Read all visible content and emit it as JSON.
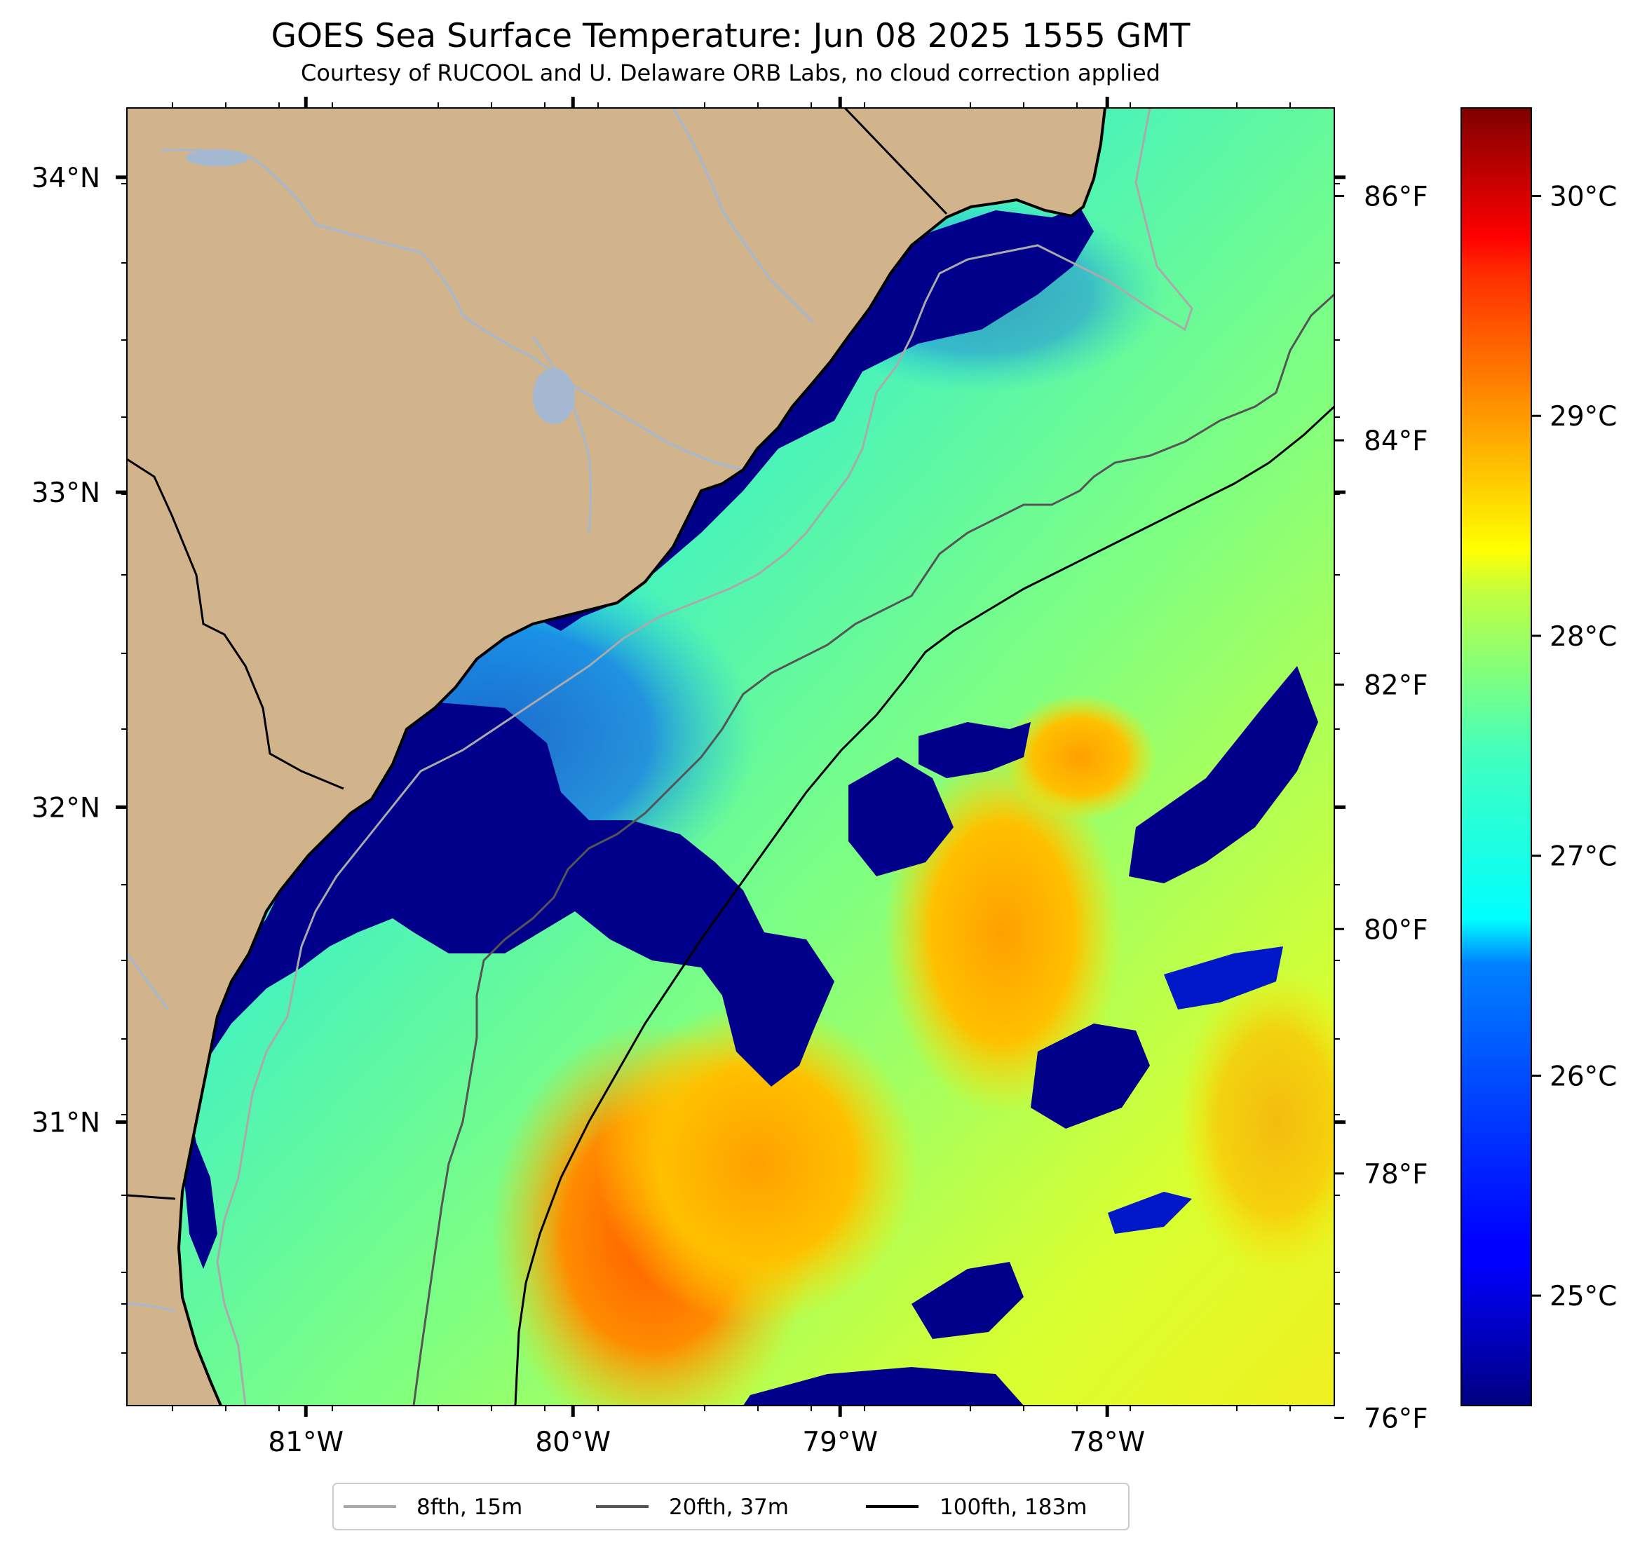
{
  "title": "GOES Sea Surface Temperature: Jun 08 2025 1555 GMT",
  "subtitle": "Courtesy of RUCOOL and U. Delaware ORB Labs, no cloud correction applied",
  "map": {
    "lon_range": [
      -81.67,
      -77.15
    ],
    "lat_range": [
      30.1,
      34.22
    ],
    "lon_ticks": [
      {
        "value": -81,
        "label": "81°W"
      },
      {
        "value": -80,
        "label": "80°W"
      },
      {
        "value": -79,
        "label": "79°W"
      },
      {
        "value": -78,
        "label": "78°W"
      }
    ],
    "lat_ticks": [
      {
        "value": 34,
        "label": "34°N"
      },
      {
        "value": 33,
        "label": "33°N"
      },
      {
        "value": 32,
        "label": "32°N"
      },
      {
        "value": 31,
        "label": "31°N"
      }
    ],
    "land_color": "#d2b48c",
    "river_color": "#a4b8d2"
  },
  "fahrenheit_axis": {
    "ticks": [
      {
        "value": 86,
        "label": "86°F"
      },
      {
        "value": 84,
        "label": "84°F"
      },
      {
        "value": 82,
        "label": "82°F"
      },
      {
        "value": 80,
        "label": "80°F"
      },
      {
        "value": 78,
        "label": "78°F"
      },
      {
        "value": 76,
        "label": "76°F"
      }
    ]
  },
  "colorbar": {
    "colormap": "jet",
    "range_c": [
      24.5,
      30.4
    ],
    "ticks": [
      {
        "value": 30,
        "label": "30°C"
      },
      {
        "value": 29,
        "label": "29°C"
      },
      {
        "value": 28,
        "label": "28°C"
      },
      {
        "value": 27,
        "label": "27°C"
      },
      {
        "value": 26,
        "label": "26°C"
      },
      {
        "value": 25,
        "label": "25°C"
      }
    ]
  },
  "legend": {
    "items": [
      {
        "label": "8fth, 15m",
        "color": "#aaaaaa"
      },
      {
        "label": "20fth, 37m",
        "color": "#555555"
      },
      {
        "label": "100fth, 183m",
        "color": "#000000"
      }
    ]
  }
}
